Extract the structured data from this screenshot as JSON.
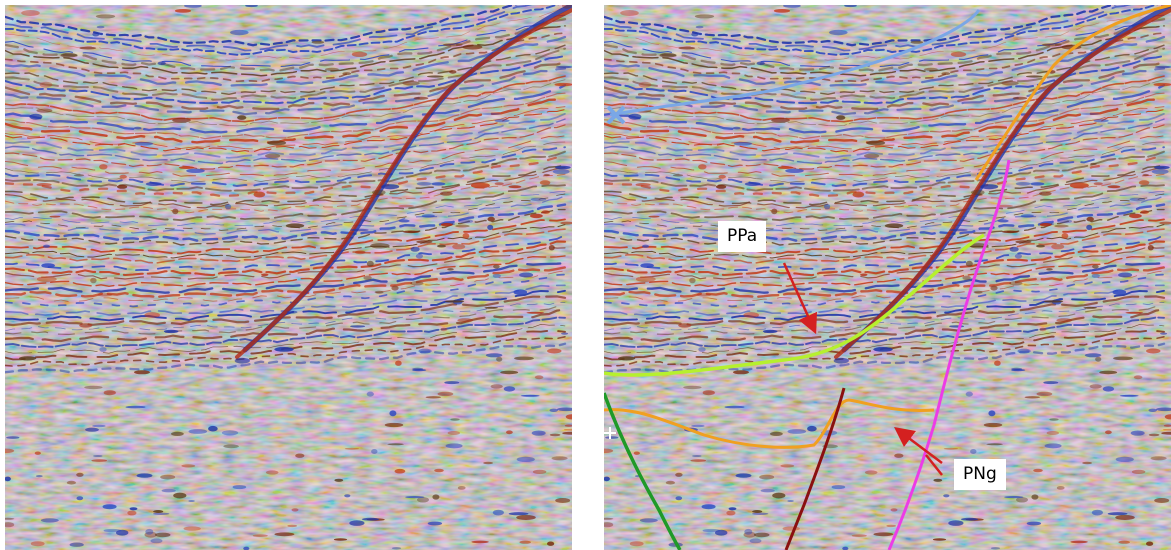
{
  "panels": {
    "left": {
      "kind": "seismic-section-uninterpreted"
    },
    "right": {
      "kind": "seismic-section-interpreted"
    }
  },
  "annotations": {
    "ppa": {
      "label": "PPa"
    },
    "png": {
      "label": "PNg"
    }
  },
  "colors": {
    "background": "#d9d6cf",
    "reflector_red": "#b12a10",
    "reflector_blue": "#1f35a8",
    "reflector_dark": "#5a3a1a",
    "horizon_light_blue": "#7aa7e6",
    "horizon_yellow_green": "#b6f02e",
    "horizon_orange": "#f0a020",
    "fault_magenta": "#ec3ce6",
    "fault_dark_red": "#8a1010",
    "fault_green": "#1f9a28",
    "arrow_red": "#d42020"
  }
}
